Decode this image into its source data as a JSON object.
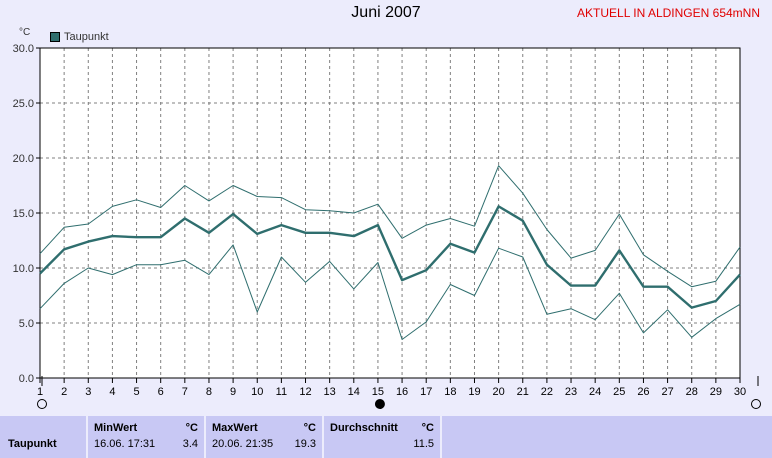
{
  "page": {
    "title": "Juni 2007",
    "station_label": "AKTUELL IN ALDINGEN 654mNN"
  },
  "colors": {
    "background": "#ececfc",
    "plot_background": "#ffffff",
    "series_line": "#2f6e6e",
    "grid": "#808080",
    "station_text": "#e00000",
    "stats_panel": "#c8c8f4"
  },
  "chart_data": {
    "type": "line",
    "unit_label": "°C",
    "legend": [
      "Taupunkt"
    ],
    "grid": true,
    "legend_position": "top-left",
    "xlim": [
      1,
      30
    ],
    "ylim": [
      0,
      30
    ],
    "x_ticks": [
      "1",
      "2",
      "3",
      "4",
      "5",
      "6",
      "7",
      "8",
      "9",
      "10",
      "11",
      "12",
      "13",
      "14",
      "15",
      "16",
      "17",
      "18",
      "19",
      "20",
      "21",
      "22",
      "23",
      "24",
      "25",
      "26",
      "27",
      "28",
      "29",
      "30"
    ],
    "y_ticks": [
      "0.0",
      "5.0",
      "10.0",
      "15.0",
      "20.0",
      "25.0",
      "30.0"
    ],
    "x": [
      1,
      2,
      3,
      4,
      5,
      6,
      7,
      8,
      9,
      10,
      11,
      12,
      13,
      14,
      15,
      16,
      17,
      18,
      19,
      20,
      21,
      22,
      23,
      24,
      25,
      26,
      27,
      28,
      29,
      30
    ],
    "series": [
      {
        "name": "Taupunkt",
        "role": "mean",
        "values": [
          9.5,
          11.7,
          12.4,
          12.9,
          12.8,
          12.8,
          14.5,
          13.2,
          14.9,
          13.1,
          13.9,
          13.2,
          13.2,
          12.9,
          13.9,
          8.9,
          9.8,
          12.2,
          11.4,
          15.6,
          14.3,
          10.3,
          8.4,
          8.4,
          11.6,
          8.3,
          8.3,
          6.4,
          7.0,
          9.4
        ]
      },
      {
        "role": "max",
        "values": [
          11.3,
          13.7,
          14.0,
          15.6,
          16.2,
          15.5,
          17.5,
          16.1,
          17.5,
          16.5,
          16.4,
          15.3,
          15.2,
          15.0,
          15.8,
          12.7,
          13.9,
          14.5,
          13.8,
          19.3,
          16.8,
          13.5,
          10.9,
          11.6,
          14.9,
          11.2,
          9.7,
          8.3,
          8.8,
          11.9
        ]
      },
      {
        "role": "min",
        "values": [
          6.3,
          8.6,
          10.0,
          9.4,
          10.3,
          10.3,
          10.7,
          9.4,
          12.1,
          6.0,
          11.0,
          8.7,
          10.6,
          8.1,
          10.5,
          3.5,
          5.1,
          8.5,
          7.5,
          11.8,
          11.0,
          5.8,
          6.3,
          5.3,
          7.7,
          4.1,
          6.2,
          3.7,
          5.4,
          6.7
        ]
      }
    ]
  },
  "stats": {
    "row_label": "Taupunkt",
    "min": {
      "header": "MinWert",
      "unit": "°C",
      "timestamp": "16.06.  17:31",
      "value": "3.4"
    },
    "max": {
      "header": "MaxWert",
      "unit": "°C",
      "timestamp": "20.06.  21:35",
      "value": "19.3"
    },
    "avg": {
      "header": "Durchschnitt",
      "unit": "°C",
      "value": "11.5"
    }
  }
}
